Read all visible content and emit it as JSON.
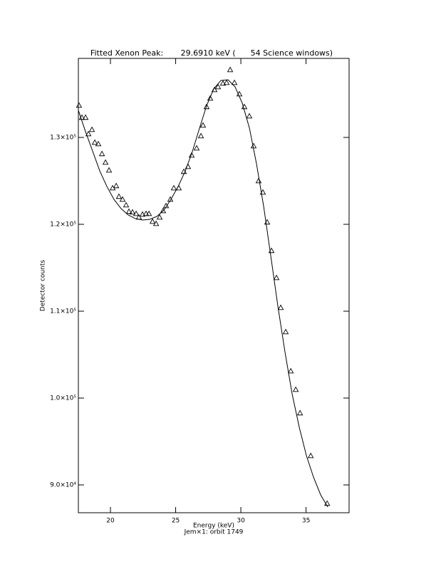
{
  "chart_data": {
    "type": "scatter",
    "title": "Fitted Xenon Peak:       29.6910 keV (      54 Science windows)",
    "x_label": "Energy (keV)",
    "y_label": "Detector counts",
    "footer": "Jem×1: orbit 1749",
    "color": "#000000",
    "xlim": [
      17.54,
      38.3
    ],
    "ylim": [
      86800,
      139100
    ],
    "xticks": [
      20,
      25,
      30,
      35
    ],
    "yticks": [
      {
        "value": 90000,
        "label": "9.0×10⁴"
      },
      {
        "value": 100000,
        "label": "1.0×10⁵"
      },
      {
        "value": 110000,
        "label": "1.1×10⁵"
      },
      {
        "value": 120000,
        "label": "1.2×10⁵"
      },
      {
        "value": 130000,
        "label": "1.3×10⁵"
      }
    ],
    "x": [
      17.59,
      17.81,
      18.09,
      18.31,
      18.58,
      18.8,
      19.07,
      19.35,
      19.62,
      19.89,
      20.17,
      20.44,
      20.65,
      20.93,
      21.2,
      21.42,
      21.69,
      21.97,
      22.18,
      22.46,
      22.73,
      22.95,
      23.23,
      23.5,
      23.77,
      24.04,
      24.26,
      24.59,
      24.86,
      25.24,
      25.63,
      25.95,
      26.23,
      26.61,
      26.94,
      27.1,
      27.37,
      27.65,
      27.98,
      28.25,
      28.63,
      28.91,
      29.18,
      29.51,
      29.89,
      30.27,
      30.65,
      30.98,
      31.36,
      31.69,
      32.02,
      32.35,
      32.73,
      33.06,
      33.44,
      33.83,
      34.21,
      34.54,
      35.36,
      36.62
    ],
    "values": [
      133690,
      132300,
      132300,
      130410,
      130900,
      129430,
      129260,
      128120,
      127130,
      126230,
      124180,
      124430,
      123200,
      122870,
      122220,
      121480,
      121400,
      121230,
      120820,
      121150,
      121230,
      121230,
      120330,
      120080,
      120820,
      121560,
      122130,
      122870,
      124180,
      124180,
      126070,
      126640,
      127950,
      128770,
      130170,
      131400,
      133530,
      134510,
      135490,
      135820,
      136230,
      136310,
      137790,
      136310,
      135000,
      133530,
      132460,
      129020,
      125000,
      123690,
      120250,
      116970,
      113850,
      110410,
      107620,
      103110,
      100980,
      98280,
      93360,
      87870
    ],
    "fit": {
      "x": [
        17.54,
        18.09,
        18.63,
        19.18,
        19.73,
        20.27,
        20.82,
        21.37,
        21.91,
        22.46,
        23.0,
        23.55,
        24.1,
        24.64,
        25.19,
        25.74,
        26.28,
        26.83,
        27.38,
        27.92,
        28.47,
        29.02,
        29.56,
        30.11,
        30.66,
        31.2,
        31.75,
        32.3,
        32.84,
        33.39,
        33.93,
        34.48,
        35.03,
        35.57,
        36.12,
        36.67
      ],
      "values": [
        133120,
        130660,
        128440,
        126150,
        124350,
        122870,
        121800,
        121070,
        120660,
        120490,
        120570,
        120900,
        121640,
        122870,
        124350,
        126150,
        128360,
        131070,
        133690,
        135580,
        136560,
        136640,
        135820,
        133940,
        131070,
        126970,
        122050,
        116310,
        110570,
        105250,
        100490,
        96640,
        93360,
        90900,
        88850,
        87460
      ]
    }
  }
}
